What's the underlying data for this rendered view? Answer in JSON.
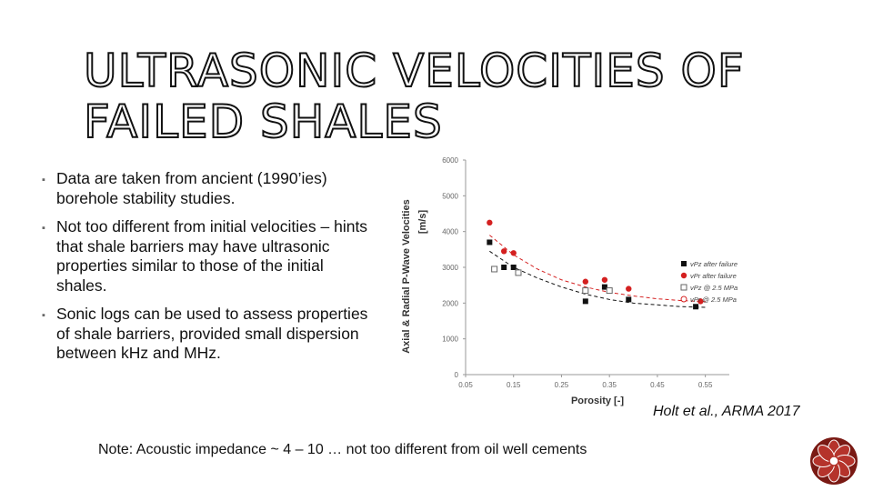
{
  "slide": {
    "title_lines": [
      "ULTRASONIC VELOCITIES OF",
      "FAILED SHALES"
    ],
    "bullet_symbol": "▪",
    "bullets": [
      "Data are taken from ancient (1990’ies) borehole stability studies.",
      "Not too different from initial velocities – hints that shale barriers may have ultrasonic properties similar to those of the initial shales.",
      "Sonic logs can be used to assess properties of shale barriers, provided small dispersion between kHz and MHz."
    ],
    "citation": "Holt et al., ARMA 2017",
    "note": "Note: Acoustic impedance ~ 4 – 10 … not too different from oil well cements",
    "colors": {
      "accent_red": "#d42020",
      "logo_red": "#b5332b",
      "logo_dark": "#7a1a14"
    },
    "logo_icon": "red-flower-logo-icon"
  },
  "chart_data": {
    "type": "scatter",
    "xlabel": "Porosity [-]",
    "ylabel": "Axial & Radial P-Wave Velocities",
    "ylabel_unit": "[m/s]",
    "xlim": [
      0.05,
      0.6
    ],
    "ylim": [
      0,
      6000
    ],
    "xticks": [
      "0.05",
      "0.15",
      "0.25",
      "0.35",
      "0.45",
      "0.55"
    ],
    "xtick_values": [
      0.05,
      0.15,
      0.25,
      0.35,
      0.45,
      0.55
    ],
    "yticks": [
      "0",
      "1000",
      "2000",
      "3000",
      "4000",
      "5000",
      "6000"
    ],
    "ytick_values": [
      0,
      1000,
      2000,
      3000,
      4000,
      5000,
      6000
    ],
    "grid": false,
    "legend_position": "right",
    "series": [
      {
        "name": "vPz after failure",
        "marker": "square-filled",
        "color": "#111111",
        "x": [
          0.1,
          0.13,
          0.15,
          0.3,
          0.34,
          0.39,
          0.53
        ],
        "y": [
          3700,
          3000,
          3000,
          2050,
          2450,
          2100,
          1900
        ]
      },
      {
        "name": "vPr after failure",
        "marker": "circle-filled",
        "color": "#d42020",
        "x": [
          0.1,
          0.13,
          0.15,
          0.3,
          0.34,
          0.39,
          0.54
        ],
        "y": [
          4250,
          3450,
          3400,
          2600,
          2650,
          2400,
          2050
        ]
      },
      {
        "name": "vPz @ 2.5 MPa",
        "marker": "square-open",
        "color": "#666666",
        "x": [
          0.11,
          0.16,
          0.3,
          0.35
        ],
        "y": [
          2950,
          2850,
          2350,
          2350
        ]
      },
      {
        "name": "vPr @ 2.5 MPa",
        "marker": "circle-open",
        "color": "#d42020",
        "x": [],
        "y": []
      }
    ],
    "trendlines": [
      {
        "style": "dashed",
        "color": "#111111",
        "x": [
          0.1,
          0.15,
          0.2,
          0.25,
          0.3,
          0.35,
          0.4,
          0.45,
          0.5,
          0.55
        ],
        "y": [
          3450,
          3000,
          2700,
          2450,
          2250,
          2100,
          2000,
          1950,
          1900,
          1880
        ]
      },
      {
        "style": "dashed",
        "color": "#d42020",
        "x": [
          0.1,
          0.15,
          0.2,
          0.25,
          0.3,
          0.35,
          0.4,
          0.45,
          0.5,
          0.55
        ],
        "y": [
          3900,
          3350,
          2950,
          2650,
          2450,
          2300,
          2200,
          2120,
          2070,
          2040
        ]
      }
    ]
  }
}
